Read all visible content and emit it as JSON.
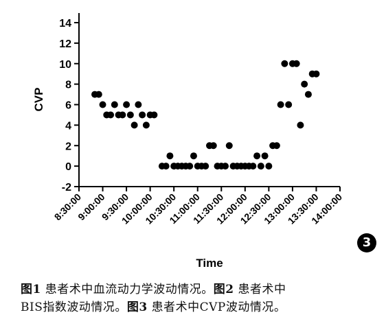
{
  "chart_data": {
    "type": "scatter",
    "xlabel": "Time",
    "ylabel": "CVP",
    "ylim": [
      -2,
      14
    ],
    "y_ticks": [
      -2,
      0,
      2,
      4,
      6,
      8,
      10,
      12,
      14
    ],
    "x_ticks": [
      "8:30:00",
      "9:00:00",
      "9:30:00",
      "10:00:00",
      "10:30:00",
      "11:00:00",
      "11:30:00",
      "12:00:00",
      "12:30:00",
      "13:00:00",
      "13:30:00",
      "14:00:00"
    ],
    "x_range_minutes": [
      510,
      840
    ],
    "points": [
      {
        "x": "8:50:00",
        "y": 7
      },
      {
        "x": "8:55:00",
        "y": 7
      },
      {
        "x": "9:00:00",
        "y": 6
      },
      {
        "x": "9:05:00",
        "y": 5
      },
      {
        "x": "9:10:00",
        "y": 5
      },
      {
        "x": "9:15:00",
        "y": 6
      },
      {
        "x": "9:20:00",
        "y": 5
      },
      {
        "x": "9:25:00",
        "y": 5
      },
      {
        "x": "9:30:00",
        "y": 6
      },
      {
        "x": "9:35:00",
        "y": 5
      },
      {
        "x": "9:40:00",
        "y": 4
      },
      {
        "x": "9:45:00",
        "y": 6
      },
      {
        "x": "9:50:00",
        "y": 5
      },
      {
        "x": "9:55:00",
        "y": 4
      },
      {
        "x": "10:00:00",
        "y": 5
      },
      {
        "x": "10:05:00",
        "y": 5
      },
      {
        "x": "10:15:00",
        "y": 0
      },
      {
        "x": "10:20:00",
        "y": 0
      },
      {
        "x": "10:25:00",
        "y": 1
      },
      {
        "x": "10:30:00",
        "y": 0
      },
      {
        "x": "10:35:00",
        "y": 0
      },
      {
        "x": "10:40:00",
        "y": 0
      },
      {
        "x": "10:45:00",
        "y": 0
      },
      {
        "x": "10:50:00",
        "y": 0
      },
      {
        "x": "10:55:00",
        "y": 1
      },
      {
        "x": "11:00:00",
        "y": 0
      },
      {
        "x": "11:05:00",
        "y": 0
      },
      {
        "x": "11:10:00",
        "y": 0
      },
      {
        "x": "11:15:00",
        "y": 2
      },
      {
        "x": "11:20:00",
        "y": 2
      },
      {
        "x": "11:25:00",
        "y": 0
      },
      {
        "x": "11:30:00",
        "y": 0
      },
      {
        "x": "11:35:00",
        "y": 0
      },
      {
        "x": "11:40:00",
        "y": 2
      },
      {
        "x": "11:45:00",
        "y": 0
      },
      {
        "x": "11:50:00",
        "y": 0
      },
      {
        "x": "11:55:00",
        "y": 0
      },
      {
        "x": "12:00:00",
        "y": 0
      },
      {
        "x": "12:05:00",
        "y": 0
      },
      {
        "x": "12:10:00",
        "y": 0
      },
      {
        "x": "12:15:00",
        "y": 1
      },
      {
        "x": "12:20:00",
        "y": 0
      },
      {
        "x": "12:25:00",
        "y": 1
      },
      {
        "x": "12:30:00",
        "y": 0
      },
      {
        "x": "12:35:00",
        "y": 2
      },
      {
        "x": "12:40:00",
        "y": 2
      },
      {
        "x": "12:45:00",
        "y": 6
      },
      {
        "x": "12:50:00",
        "y": 10
      },
      {
        "x": "12:55:00",
        "y": 6
      },
      {
        "x": "13:00:00",
        "y": 10
      },
      {
        "x": "13:05:00",
        "y": 10
      },
      {
        "x": "13:10:00",
        "y": 4
      },
      {
        "x": "13:15:00",
        "y": 8
      },
      {
        "x": "13:20:00",
        "y": 7
      },
      {
        "x": "13:25:00",
        "y": 9
      },
      {
        "x": "13:30:00",
        "y": 9
      }
    ]
  },
  "badge": "3",
  "caption": {
    "line1": [
      {
        "text": "图1",
        "bold": true
      },
      {
        "text": " 患者术中血流动力学波动情况。",
        "bold": false
      },
      {
        "text": "图2",
        "bold": true
      },
      {
        "text": " 患者术中",
        "bold": false
      }
    ],
    "line2": [
      {
        "text": "BIS指数波动情况。",
        "bold": false
      },
      {
        "text": "图3",
        "bold": true
      },
      {
        "text": " 患者术中CVP波动情况。",
        "bold": false
      }
    ]
  }
}
